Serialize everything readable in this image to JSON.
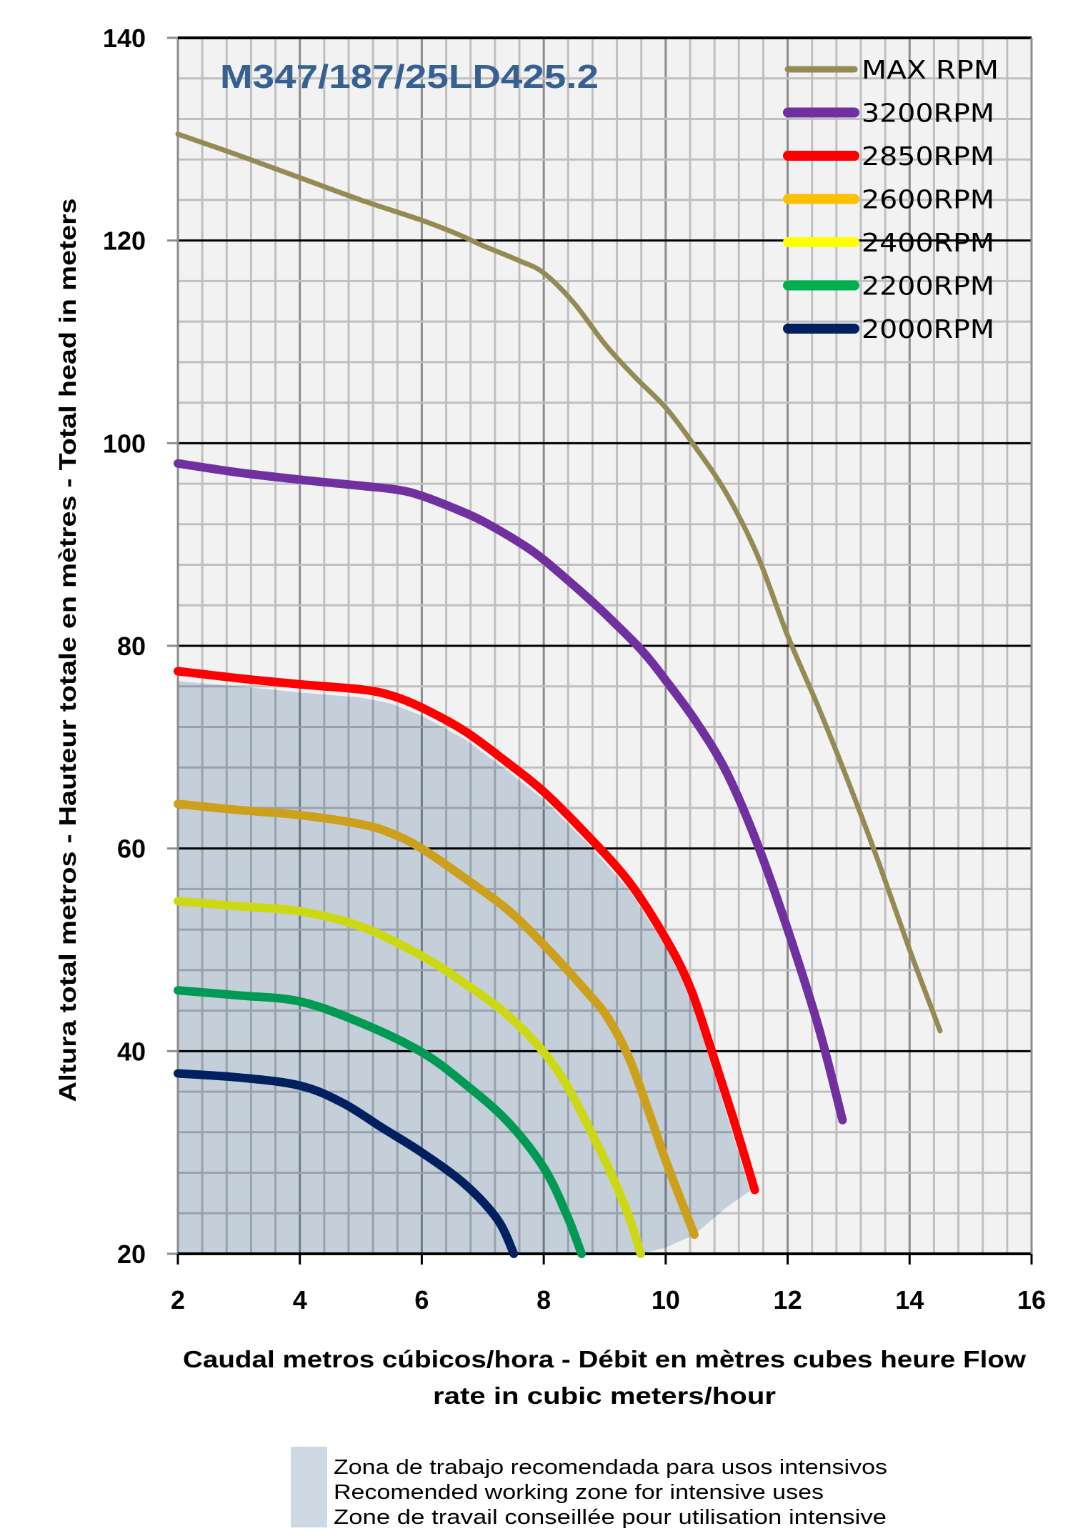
{
  "chart_data": {
    "type": "line",
    "title": "M347/187/25LD425.2",
    "xlabel_lines": [
      "Caudal metros cúbicos/hora - Débit en mètres cubes heure  Flow",
      "rate in cubic meters/hour"
    ],
    "ylabel": "Altura total metros - Hauteur totale en mètres - Total head in meters",
    "xlim": [
      2,
      16
    ],
    "ylim": [
      20,
      140
    ],
    "x_ticks": [
      "2",
      "4",
      "6",
      "8",
      "10",
      "12",
      "14",
      "16"
    ],
    "y_ticks": [
      "20",
      "40",
      "60",
      "80",
      "100",
      "120",
      "140"
    ],
    "grid": true,
    "legend_position": "top-right",
    "series": [
      {
        "name": "MAX RPM",
        "color": "#948A54",
        "legend_color": "#948A54",
        "points": [
          [
            2,
            130.5
          ],
          [
            3,
            128.4
          ],
          [
            4,
            126.2
          ],
          [
            5,
            124
          ],
          [
            6,
            122
          ],
          [
            6.6,
            120.6
          ],
          [
            7,
            119.5
          ],
          [
            7.6,
            118
          ],
          [
            8,
            116.8
          ],
          [
            8.5,
            113.8
          ],
          [
            9,
            109.8
          ],
          [
            9.5,
            106.5
          ],
          [
            10,
            103.5
          ],
          [
            10.5,
            99.5
          ],
          [
            11,
            95
          ],
          [
            11.5,
            89
          ],
          [
            12,
            81
          ],
          [
            12.5,
            74
          ],
          [
            13,
            66.5
          ],
          [
            13.5,
            58.5
          ],
          [
            14,
            50
          ],
          [
            14.5,
            42
          ]
        ]
      },
      {
        "name": "3200RPM",
        "color": "#7030A0",
        "legend_color": "#7030A0",
        "points": [
          [
            2,
            98
          ],
          [
            3,
            97.1
          ],
          [
            4,
            96.4
          ],
          [
            5,
            95.8
          ],
          [
            5.6,
            95.4
          ],
          [
            6,
            94.8
          ],
          [
            6.6,
            93.4
          ],
          [
            7,
            92.3
          ],
          [
            7.6,
            90.2
          ],
          [
            8,
            88.5
          ],
          [
            8.6,
            85.4
          ],
          [
            9,
            83.2
          ],
          [
            9.6,
            79.6
          ],
          [
            10,
            76.6
          ],
          [
            10.5,
            72.5
          ],
          [
            11,
            67.5
          ],
          [
            11.5,
            60.5
          ],
          [
            12,
            52
          ],
          [
            12.5,
            42.5
          ],
          [
            12.9,
            33.2
          ]
        ]
      },
      {
        "name": "2850RPM",
        "color": "#FF0000",
        "legend_color": "#FF0000",
        "points": [
          [
            2,
            77.5
          ],
          [
            3,
            76.8
          ],
          [
            4,
            76.2
          ],
          [
            5,
            75.7
          ],
          [
            5.5,
            75.1
          ],
          [
            6,
            73.9
          ],
          [
            6.7,
            71.6
          ],
          [
            7.4,
            68.5
          ],
          [
            8,
            65.6
          ],
          [
            8.7,
            61.4
          ],
          [
            9.4,
            56.7
          ],
          [
            10,
            51.1
          ],
          [
            10.4,
            46.3
          ],
          [
            10.75,
            40.1
          ],
          [
            11.1,
            33.5
          ],
          [
            11.46,
            26.3
          ]
        ]
      },
      {
        "name": "2600RPM",
        "color": "#CCA01A",
        "legend_color": "#FFC000",
        "points": [
          [
            2,
            64.4
          ],
          [
            3,
            63.8
          ],
          [
            4,
            63.3
          ],
          [
            5,
            62.4
          ],
          [
            5.5,
            61.5
          ],
          [
            6,
            60
          ],
          [
            6.7,
            57.1
          ],
          [
            7.4,
            54
          ],
          [
            8,
            50.5
          ],
          [
            8.7,
            45.9
          ],
          [
            9.06,
            43.2
          ],
          [
            9.4,
            39.3
          ],
          [
            9.73,
            33.9
          ],
          [
            10,
            29.2
          ],
          [
            10.47,
            21.9
          ]
        ]
      },
      {
        "name": "2400RPM",
        "color": "#CDD815",
        "legend_color": "#FFFF00",
        "points": [
          [
            2,
            54.8
          ],
          [
            3,
            54.3
          ],
          [
            4,
            53.8
          ],
          [
            5,
            52.3
          ],
          [
            6,
            49.4
          ],
          [
            6.7,
            46.7
          ],
          [
            7.4,
            43.6
          ],
          [
            8,
            39.9
          ],
          [
            8.38,
            36.6
          ],
          [
            8.72,
            32.7
          ],
          [
            9.06,
            28.5
          ],
          [
            9.39,
            23.8
          ],
          [
            9.59,
            20
          ]
        ]
      },
      {
        "name": "2200RPM",
        "color": "#009A55",
        "legend_color": "#00B050",
        "points": [
          [
            2,
            46
          ],
          [
            3,
            45.5
          ],
          [
            4,
            44.9
          ],
          [
            5,
            42.8
          ],
          [
            6,
            39.9
          ],
          [
            6.7,
            36.8
          ],
          [
            7.4,
            33.1
          ],
          [
            8,
            28.5
          ],
          [
            8.38,
            23.8
          ],
          [
            8.62,
            20
          ]
        ]
      },
      {
        "name": "2000RPM",
        "color": "#002060",
        "legend_color": "#002060",
        "points": [
          [
            2,
            37.8
          ],
          [
            3,
            37.4
          ],
          [
            4,
            36.6
          ],
          [
            4.7,
            34.9
          ],
          [
            5.36,
            32.4
          ],
          [
            6,
            30
          ],
          [
            6.7,
            26.9
          ],
          [
            7.24,
            23.4
          ],
          [
            7.51,
            20
          ]
        ]
      }
    ],
    "zone": {
      "color": "#C4CFDA",
      "legend_lines": [
        "Zona de trabajo recomendada para usos intensivos",
        "Recomended working zone for intensive uses",
        "Zone de travail conseillée pour utilisation intensive"
      ],
      "boundary": [
        [
          2,
          76.5
        ],
        [
          3,
          76
        ],
        [
          4,
          75.4
        ],
        [
          5,
          74.9
        ],
        [
          5.5,
          74.3
        ],
        [
          6,
          73.1
        ],
        [
          6.7,
          70.8
        ],
        [
          7.4,
          67.7
        ],
        [
          8,
          64.8
        ],
        [
          8.7,
          60.6
        ],
        [
          9.4,
          55.9
        ],
        [
          10,
          50.3
        ],
        [
          10.4,
          45.5
        ],
        [
          10.72,
          39.3
        ],
        [
          11.05,
          32.7
        ],
        [
          11.38,
          26.2
        ],
        [
          11.0,
          24.6
        ],
        [
          10.47,
          21.9
        ],
        [
          10.0,
          20.6
        ],
        [
          9.6,
          20
        ],
        [
          2,
          20
        ]
      ]
    }
  }
}
